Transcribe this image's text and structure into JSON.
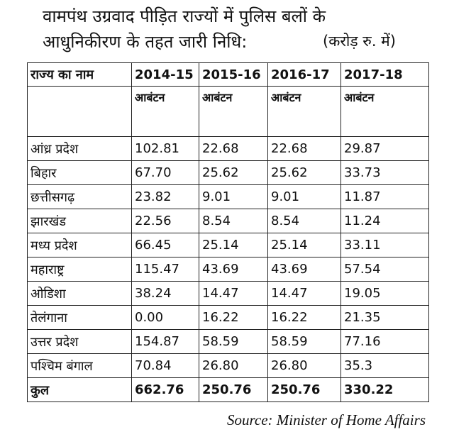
{
  "title": {
    "line1": "वामपंथ उग्रवाद पीड़ित राज्यों में पुलिस बलों के",
    "line2": "आधुनिकीरण के तहत जारी निधि:",
    "unit": "(करोड़ रु. में)"
  },
  "table": {
    "header": [
      "राज्य का नाम",
      "2014-15",
      "2015-16",
      "2016-17",
      "2017-18"
    ],
    "subheader": [
      "आबंटन",
      "आबंटन",
      "आबंटन",
      "आबंटन"
    ],
    "rows": [
      [
        "आंध्र प्रदेश",
        "102.81",
        "22.68",
        "22.68",
        "29.87"
      ],
      [
        "बिहार",
        "67.70",
        "25.62",
        "25.62",
        "33.73"
      ],
      [
        "छत्तीसगढ़",
        "23.82",
        "9.01",
        "9.01",
        "11.87"
      ],
      [
        "झारखंड",
        "22.56",
        "8.54",
        "8.54",
        "11.24"
      ],
      [
        "मध्य प्रदेश",
        "66.45",
        "25.14",
        "25.14",
        "33.11"
      ],
      [
        "महाराष्ट्र",
        "115.47",
        "43.69",
        "43.69",
        "57.54"
      ],
      [
        "ओडिशा",
        "38.24",
        "14.47",
        "14.47",
        "19.05"
      ],
      [
        "तेलंगाना",
        "0.00",
        "16.22",
        "16.22",
        "21.35"
      ],
      [
        "उत्तर प्रदेश",
        "154.87",
        "58.59",
        "58.59",
        "77.16"
      ],
      [
        "पश्चिम बंगाल",
        "70.84",
        "26.80",
        "26.80",
        "35.3"
      ]
    ],
    "total": [
      "कुल",
      "662.76",
      "250.76",
      "250.76",
      "330.22"
    ]
  },
  "source": "Source: Minister of Home Affairs"
}
